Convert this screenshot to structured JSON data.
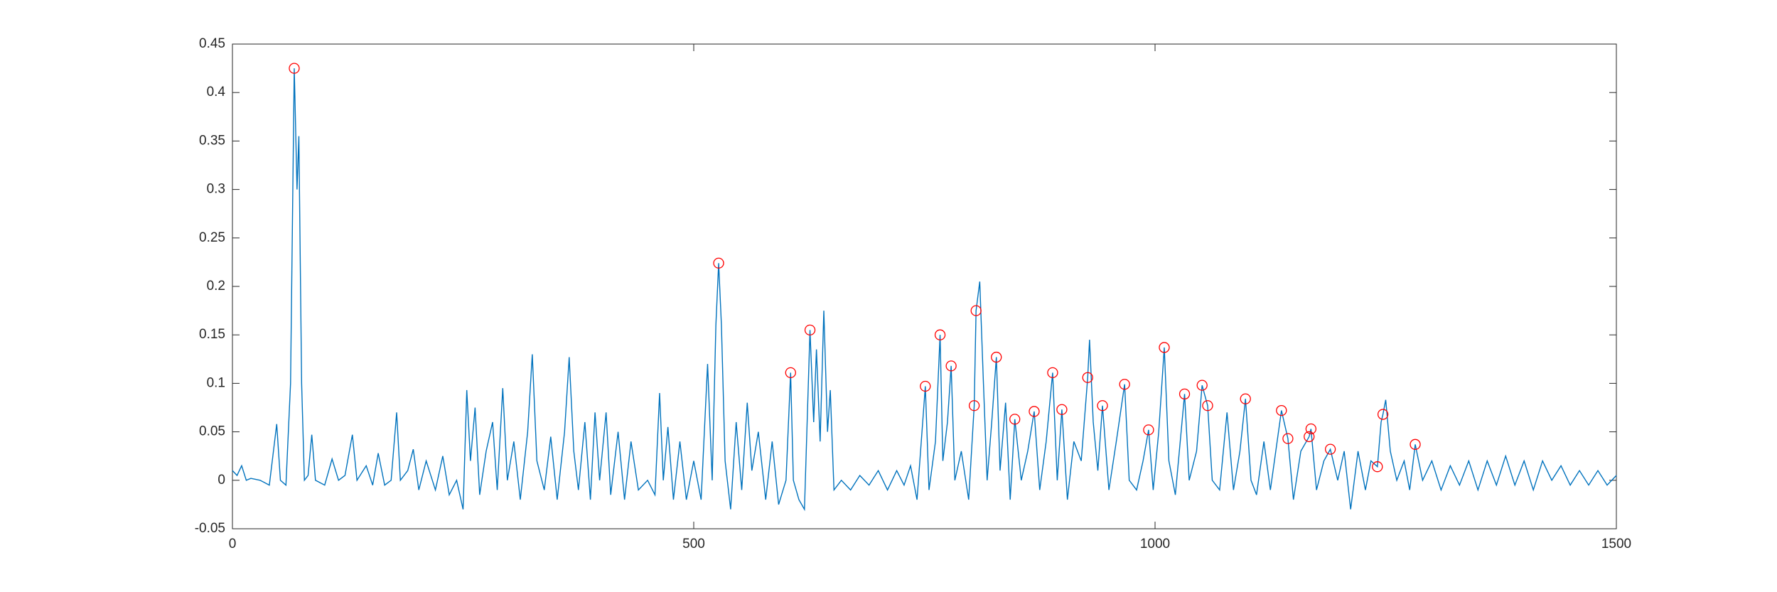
{
  "chart_data": {
    "type": "line",
    "xlim": [
      0,
      1500
    ],
    "xticks": [
      0,
      500,
      1000,
      1500
    ],
    "ylim": [
      -0.05,
      0.45
    ],
    "yticks": [
      -0.05,
      0,
      0.05,
      0.1,
      0.15,
      0.2,
      0.25,
      0.3,
      0.35,
      0.4,
      0.45
    ],
    "box": true,
    "series": [
      {
        "type": "line",
        "color": "#0072bd",
        "x": [
          0,
          5,
          10,
          15,
          20,
          30,
          40,
          48,
          52,
          58,
          63,
          67,
          70,
          72,
          75,
          78,
          82,
          86,
          90,
          100,
          108,
          115,
          122,
          130,
          135,
          145,
          152,
          158,
          165,
          172,
          178,
          182,
          190,
          196,
          202,
          210,
          220,
          228,
          235,
          243,
          250,
          254,
          258,
          263,
          268,
          275,
          282,
          287,
          293,
          298,
          305,
          312,
          320,
          325,
          330,
          338,
          345,
          352,
          360,
          365,
          370,
          375,
          382,
          388,
          393,
          398,
          405,
          410,
          418,
          425,
          432,
          440,
          450,
          458,
          463,
          467,
          472,
          478,
          485,
          492,
          500,
          508,
          515,
          520,
          524,
          527,
          530,
          534,
          540,
          546,
          552,
          558,
          563,
          570,
          578,
          585,
          592,
          600,
          605,
          608,
          614,
          620,
          626,
          630,
          633,
          637,
          641,
          645,
          648,
          652,
          660,
          670,
          680,
          690,
          700,
          710,
          720,
          728,
          735,
          742,
          751,
          755,
          762,
          767,
          770,
          775,
          779,
          783,
          790,
          798,
          804,
          806,
          810,
          814,
          818,
          823,
          828,
          832,
          838,
          843,
          848,
          855,
          862,
          869,
          875,
          882,
          889,
          894,
          899,
          905,
          912,
          920,
          927,
          929,
          933,
          938,
          943,
          950,
          958,
          967,
          972,
          980,
          987,
          993,
          998,
          1004,
          1010,
          1015,
          1022,
          1032,
          1037,
          1045,
          1051,
          1057,
          1062,
          1070,
          1078,
          1085,
          1092,
          1098,
          1104,
          1110,
          1118,
          1125,
          1137,
          1144,
          1150,
          1158,
          1167,
          1169,
          1175,
          1183,
          1190,
          1198,
          1205,
          1212,
          1220,
          1228,
          1234,
          1241,
          1245,
          1247,
          1250,
          1255,
          1262,
          1270,
          1276,
          1282,
          1290,
          1300,
          1310,
          1320,
          1330,
          1340,
          1350,
          1360,
          1370,
          1380,
          1390,
          1400,
          1410,
          1420,
          1430,
          1440,
          1450,
          1460,
          1470,
          1480,
          1490,
          1500
        ],
        "values": [
          0.01,
          0.005,
          0.015,
          0.0,
          0.002,
          0.0,
          -0.005,
          0.058,
          0.0,
          -0.005,
          0.1,
          0.425,
          0.3,
          0.355,
          0.1,
          0.0,
          0.005,
          0.047,
          0.0,
          -0.005,
          0.022,
          0.0,
          0.005,
          0.047,
          0.0,
          0.015,
          -0.005,
          0.028,
          -0.005,
          0.0,
          0.07,
          0.0,
          0.01,
          0.032,
          -0.01,
          0.02,
          -0.01,
          0.025,
          -0.015,
          0.0,
          -0.03,
          0.093,
          0.02,
          0.075,
          -0.015,
          0.03,
          0.06,
          -0.01,
          0.095,
          0.0,
          0.04,
          -0.02,
          0.05,
          0.13,
          0.02,
          -0.01,
          0.045,
          -0.02,
          0.05,
          0.127,
          0.03,
          -0.01,
          0.06,
          -0.02,
          0.07,
          0.0,
          0.07,
          -0.015,
          0.05,
          -0.02,
          0.04,
          -0.01,
          0.0,
          -0.015,
          0.09,
          0.0,
          0.055,
          -0.02,
          0.04,
          -0.02,
          0.02,
          -0.02,
          0.12,
          0.0,
          0.16,
          0.224,
          0.16,
          0.02,
          -0.03,
          0.06,
          -0.01,
          0.08,
          0.01,
          0.05,
          -0.02,
          0.04,
          -0.025,
          0.0,
          0.111,
          0.0,
          -0.02,
          -0.03,
          0.155,
          0.06,
          0.135,
          0.04,
          0.175,
          0.05,
          0.093,
          -0.01,
          0.0,
          -0.01,
          0.005,
          -0.005,
          0.01,
          -0.01,
          0.01,
          -0.005,
          0.015,
          -0.02,
          0.097,
          -0.01,
          0.04,
          0.15,
          0.02,
          0.06,
          0.118,
          0.0,
          0.03,
          -0.02,
          0.077,
          0.175,
          0.205,
          0.1,
          0.0,
          0.06,
          0.127,
          0.01,
          0.08,
          -0.02,
          0.063,
          0.0,
          0.03,
          0.071,
          -0.01,
          0.04,
          0.111,
          0.0,
          0.073,
          -0.02,
          0.04,
          0.02,
          0.106,
          0.145,
          0.06,
          0.01,
          0.077,
          -0.01,
          0.04,
          0.099,
          0.0,
          -0.01,
          0.02,
          0.052,
          -0.01,
          0.05,
          0.137,
          0.02,
          -0.015,
          0.089,
          0.0,
          0.03,
          0.098,
          0.077,
          0.0,
          -0.01,
          0.07,
          -0.01,
          0.03,
          0.084,
          0.0,
          -0.015,
          0.04,
          -0.01,
          0.072,
          0.043,
          -0.02,
          0.03,
          0.045,
          0.053,
          -0.01,
          0.02,
          0.032,
          0.0,
          0.03,
          -0.03,
          0.03,
          -0.01,
          0.02,
          0.014,
          0.06,
          0.068,
          0.083,
          0.03,
          0.0,
          0.02,
          -0.01,
          0.037,
          0.0,
          0.02,
          -0.01,
          0.015,
          -0.005,
          0.02,
          -0.01,
          0.02,
          -0.005,
          0.025,
          -0.005,
          0.02,
          -0.01,
          0.02,
          0.0,
          0.015,
          -0.005,
          0.01,
          -0.005,
          0.01,
          -0.005,
          0.005
        ]
      },
      {
        "type": "scatter",
        "color": "#ff0000",
        "marker": "o",
        "x": [
          67,
          527,
          605,
          626,
          751,
          767,
          779,
          804,
          806,
          828,
          848,
          869,
          889,
          899,
          927,
          943,
          967,
          993,
          1010,
          1032,
          1051,
          1057,
          1098,
          1137,
          1144,
          1167,
          1169,
          1190,
          1241,
          1247,
          1282
        ],
        "values": [
          0.425,
          0.224,
          0.111,
          0.155,
          0.097,
          0.15,
          0.118,
          0.077,
          0.175,
          0.127,
          0.063,
          0.071,
          0.111,
          0.073,
          0.106,
          0.077,
          0.099,
          0.052,
          0.137,
          0.089,
          0.098,
          0.077,
          0.084,
          0.072,
          0.043,
          0.045,
          0.053,
          0.032,
          0.014,
          0.068,
          0.037
        ]
      }
    ]
  }
}
